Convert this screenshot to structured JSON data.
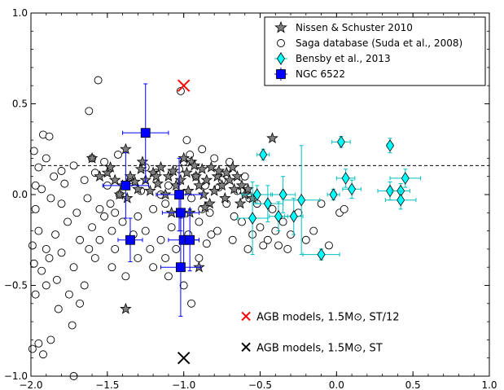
{
  "chart_data": {
    "type": "scatter",
    "title": "",
    "xlabel": "",
    "ylabel": "",
    "xlim": [
      -2.0,
      1.0
    ],
    "ylim": [
      -1.0,
      1.0
    ],
    "xticks": [
      -2.0,
      -1.5,
      -1.0,
      -0.5,
      0.0,
      0.5,
      1.0
    ],
    "yticks": [
      -1.0,
      -0.5,
      0.0,
      0.5,
      1.0
    ],
    "xtick_labels": [
      "−2.0",
      "−1.5",
      "−1.0",
      "−0.5",
      "0.0",
      "0.5",
      "1.0"
    ],
    "ytick_labels": [
      "−1.0",
      "−0.5",
      "0.0",
      "0.5",
      "1.0"
    ],
    "reference_line": {
      "y": 0.16,
      "style": "dashed",
      "color": "#000000"
    },
    "legend_position": "top-right",
    "legend": [
      {
        "label": "Nissen & Schuster 2010",
        "marker": "star"
      },
      {
        "label": "Saga database (Suda et al., 2008)",
        "marker": "open-circle"
      },
      {
        "label": "Bensby et al., 2013",
        "marker": "diamond"
      },
      {
        "label": "NGC 6522",
        "marker": "square"
      }
    ],
    "annotations": [
      {
        "x": -1.0,
        "y": 0.6,
        "marker": "x",
        "color": "#ff0000",
        "text": "AGB models, 1.5M⊙, ST/12",
        "text_x": -0.55,
        "text_y": -0.67
      },
      {
        "x": -1.0,
        "y": -0.9,
        "marker": "x",
        "color": "#000000",
        "text": "AGB models, 1.5M⊙, ST",
        "text_x": -0.55,
        "text_y": -0.84
      }
    ],
    "series": [
      {
        "name": "Saga database (Suda et al., 2008)",
        "marker": "open-circle",
        "color": "#000000",
        "points": [
          [
            -1.56,
            0.63
          ],
          [
            -1.62,
            0.46
          ],
          [
            -1.92,
            0.33
          ],
          [
            -1.88,
            0.32
          ],
          [
            -1.98,
            0.24
          ],
          [
            -1.9,
            0.2
          ],
          [
            -1.95,
            0.15
          ],
          [
            -1.8,
            0.13
          ],
          [
            -1.72,
            0.16
          ],
          [
            -1.85,
            0.1
          ],
          [
            -1.97,
            0.05
          ],
          [
            -1.93,
            0.03
          ],
          [
            -1.78,
            0.06
          ],
          [
            -1.65,
            0.08
          ],
          [
            -1.58,
            0.12
          ],
          [
            -1.87,
            -0.02
          ],
          [
            -1.97,
            -0.08
          ],
          [
            -1.8,
            -0.05
          ],
          [
            -1.7,
            -0.1
          ],
          [
            -1.63,
            -0.02
          ],
          [
            -1.55,
            -0.08
          ],
          [
            -1.95,
            -0.2
          ],
          [
            -1.9,
            -0.3
          ],
          [
            -1.99,
            -0.28
          ],
          [
            -1.84,
            -0.22
          ],
          [
            -1.76,
            -0.15
          ],
          [
            -1.68,
            -0.25
          ],
          [
            -1.6,
            -0.18
          ],
          [
            -1.52,
            -0.12
          ],
          [
            -1.98,
            -0.38
          ],
          [
            -1.93,
            -0.42
          ],
          [
            -1.88,
            -0.35
          ],
          [
            -1.8,
            -0.32
          ],
          [
            -1.72,
            -0.4
          ],
          [
            -1.62,
            -0.3
          ],
          [
            -1.55,
            -0.25
          ],
          [
            -1.47,
            -0.2
          ],
          [
            -1.9,
            -0.5
          ],
          [
            -1.83,
            -0.47
          ],
          [
            -1.97,
            -0.55
          ],
          [
            -1.75,
            -0.55
          ],
          [
            -1.68,
            -0.6
          ],
          [
            -1.82,
            -0.63
          ],
          [
            -1.73,
            -0.72
          ],
          [
            -1.99,
            -0.85
          ],
          [
            -1.95,
            -0.82
          ],
          [
            -1.87,
            -0.8
          ],
          [
            -1.92,
            -0.88
          ],
          [
            -1.72,
            -1.0
          ],
          [
            -1.5,
            0.05
          ],
          [
            -1.48,
            -0.05
          ],
          [
            -1.45,
            -0.1
          ],
          [
            -1.4,
            -0.15
          ],
          [
            -1.42,
            0.0
          ],
          [
            -1.35,
            0.08
          ],
          [
            -1.3,
            -0.12
          ],
          [
            -1.28,
            0.02
          ],
          [
            -1.25,
            -0.2
          ],
          [
            -1.2,
            -0.08
          ],
          [
            -1.18,
            0.12
          ],
          [
            -1.15,
            -0.25
          ],
          [
            -1.12,
            -0.05
          ],
          [
            -1.1,
            0.05
          ],
          [
            -1.08,
            -0.18
          ],
          [
            -1.05,
            -0.3
          ],
          [
            -1.03,
            0.14
          ],
          [
            -1.0,
            0.18
          ],
          [
            -0.98,
            0.3
          ],
          [
            -0.96,
            0.22
          ],
          [
            -0.95,
            -0.02
          ],
          [
            -0.92,
            0.1
          ],
          [
            -0.9,
            -0.15
          ],
          [
            -0.88,
            0.25
          ],
          [
            -0.86,
            0.05
          ],
          [
            -0.83,
            -0.1
          ],
          [
            -0.8,
            0.2
          ],
          [
            -0.78,
            -0.2
          ],
          [
            -0.75,
            0.08
          ],
          [
            -0.72,
            -0.05
          ],
          [
            -0.7,
            0.18
          ],
          [
            -0.68,
            -0.25
          ],
          [
            -0.65,
            0.02
          ],
          [
            -0.62,
            -0.15
          ],
          [
            -0.6,
            0.1
          ],
          [
            -0.58,
            -0.3
          ],
          [
            -0.55,
            -0.22
          ],
          [
            -0.52,
            -0.05
          ],
          [
            -0.5,
            -0.18
          ],
          [
            -0.48,
            -0.28
          ],
          [
            -0.45,
            -0.25
          ],
          [
            -0.42,
            -0.08
          ],
          [
            -0.4,
            -0.2
          ],
          [
            -0.38,
            -0.28
          ],
          [
            -0.35,
            -0.15
          ],
          [
            -0.32,
            -0.3
          ],
          [
            -0.3,
            -0.22
          ],
          [
            -0.25,
            -0.1
          ],
          [
            -0.2,
            -0.25
          ],
          [
            -0.15,
            -0.2
          ],
          [
            -0.1,
            -0.05
          ],
          [
            -0.05,
            -0.28
          ],
          [
            0.02,
            -0.1
          ],
          [
            0.05,
            -0.08
          ],
          [
            -1.02,
            0.57
          ],
          [
            -1.3,
            -0.35
          ],
          [
            -1.2,
            -0.4
          ],
          [
            -1.1,
            -0.45
          ],
          [
            -0.95,
            -0.6
          ],
          [
            -1.0,
            -0.5
          ],
          [
            -0.9,
            -0.35
          ],
          [
            -1.38,
            -0.45
          ],
          [
            -1.45,
            -0.3
          ],
          [
            -1.25,
            0.15
          ],
          [
            -1.33,
            -0.22
          ],
          [
            -1.15,
            0.0
          ],
          [
            -0.85,
            -0.27
          ],
          [
            -0.67,
            -0.12
          ],
          [
            -0.77,
            0.04
          ],
          [
            -0.57,
            -0.02
          ],
          [
            -1.6,
            0.2
          ],
          [
            -1.52,
            0.18
          ],
          [
            -1.43,
            0.22
          ],
          [
            -1.22,
            -0.3
          ],
          [
            -1.12,
            -0.35
          ],
          [
            -0.97,
            -0.22
          ],
          [
            -0.88,
            -0.08
          ],
          [
            -0.82,
            -0.22
          ],
          [
            -1.47,
            -0.4
          ],
          [
            -1.58,
            -0.35
          ],
          [
            -1.65,
            -0.5
          ]
        ]
      },
      {
        "name": "Nissen & Schuster 2010",
        "marker": "star",
        "color": "#808080",
        "points": [
          [
            -1.6,
            0.2
          ],
          [
            -1.38,
            0.25
          ],
          [
            -1.27,
            0.18
          ],
          [
            -1.5,
            0.12
          ],
          [
            -1.45,
            0.08
          ],
          [
            -1.4,
            0.05
          ],
          [
            -1.35,
            0.1
          ],
          [
            -1.3,
            0.03
          ],
          [
            -1.25,
            0.08
          ],
          [
            -1.2,
            0.12
          ],
          [
            -1.15,
            0.15
          ],
          [
            -1.1,
            0.1
          ],
          [
            -1.05,
            0.05
          ],
          [
            -1.0,
            0.2
          ],
          [
            -0.98,
            0.12
          ],
          [
            -0.95,
            0.18
          ],
          [
            -0.92,
            0.1
          ],
          [
            -0.9,
            0.05
          ],
          [
            -0.88,
            0.14
          ],
          [
            -0.85,
            0.08
          ],
          [
            -0.82,
            0.15
          ],
          [
            -0.8,
            0.02
          ],
          [
            -0.78,
            0.1
          ],
          [
            -0.75,
            0.05
          ],
          [
            -0.72,
            0.12
          ],
          [
            -0.7,
            0.08
          ],
          [
            -0.68,
            0.15
          ],
          [
            -0.65,
            0.1
          ],
          [
            -0.62,
            0.05
          ],
          [
            -0.6,
            0.0
          ],
          [
            -0.58,
            0.03
          ],
          [
            -0.55,
            -0.02
          ],
          [
            -0.42,
            0.31
          ],
          [
            -1.42,
            0.0
          ],
          [
            -1.37,
            -0.02
          ],
          [
            -1.32,
            0.07
          ],
          [
            -1.22,
            0.02
          ],
          [
            -1.17,
            0.06
          ],
          [
            -1.12,
            0.0
          ],
          [
            -1.07,
            0.13
          ],
          [
            -1.02,
            0.08
          ],
          [
            -0.97,
            0.02
          ],
          [
            -0.93,
            0.16
          ],
          [
            -0.87,
            0.0
          ],
          [
            -0.83,
            -0.05
          ],
          [
            -0.77,
            0.13
          ],
          [
            -0.73,
            -0.02
          ],
          [
            -0.67,
            0.03
          ],
          [
            -0.63,
            -0.05
          ],
          [
            -1.55,
            0.1
          ],
          [
            -1.48,
            0.15
          ],
          [
            -1.28,
            0.14
          ],
          [
            -1.18,
            0.1
          ],
          [
            -1.08,
            -0.1
          ],
          [
            -0.9,
            -0.4
          ],
          [
            -1.38,
            -0.63
          ],
          [
            -0.96,
            -0.1
          ],
          [
            -0.86,
            -0.07
          ]
        ]
      },
      {
        "name": "Bensby et al., 2013",
        "marker": "diamond",
        "color": "#00ffff",
        "points": [
          {
            "x": -0.48,
            "y": 0.22,
            "xerr": 0.04,
            "yerr": 0.03
          },
          {
            "x": -0.52,
            "y": 0.0,
            "xerr": 0.1,
            "yerr": 0.05
          },
          {
            "x": -0.45,
            "y": -0.05,
            "xerr": 0.1,
            "yerr": 0.1
          },
          {
            "x": -0.38,
            "y": -0.12,
            "xerr": 0.06,
            "yerr": 0.08
          },
          {
            "x": -0.35,
            "y": 0.0,
            "xerr": 0.08,
            "yerr": 0.1
          },
          {
            "x": -0.55,
            "y": -0.13,
            "xerr": 0.1,
            "yerr": 0.2
          },
          {
            "x": -0.28,
            "y": -0.12,
            "xerr": 0.06,
            "yerr": 0.1
          },
          {
            "x": -0.23,
            "y": -0.03,
            "xerr": 0.12,
            "yerr": 0.3
          },
          {
            "x": -0.1,
            "y": -0.33,
            "xerr": 0.12,
            "yerr": 0.03
          },
          {
            "x": -0.02,
            "y": 0.0,
            "xerr": 0.04,
            "yerr": 0.03
          },
          {
            "x": 0.03,
            "y": 0.29,
            "xerr": 0.06,
            "yerr": 0.03
          },
          {
            "x": 0.06,
            "y": 0.09,
            "xerr": 0.06,
            "yerr": 0.05
          },
          {
            "x": 0.1,
            "y": 0.03,
            "xerr": 0.06,
            "yerr": 0.05
          },
          {
            "x": 0.35,
            "y": 0.27,
            "xerr": 0.02,
            "yerr": 0.04
          },
          {
            "x": 0.35,
            "y": 0.02,
            "xerr": 0.08,
            "yerr": 0.05
          },
          {
            "x": 0.42,
            "y": 0.02,
            "xerr": 0.06,
            "yerr": 0.04
          },
          {
            "x": 0.45,
            "y": 0.09,
            "xerr": 0.1,
            "yerr": 0.05
          },
          {
            "x": 0.42,
            "y": -0.03,
            "xerr": 0.1,
            "yerr": 0.05
          }
        ]
      },
      {
        "name": "NGC 6522",
        "marker": "square",
        "color": "#0000ff",
        "points": [
          {
            "x": -1.25,
            "y": 0.34,
            "xerr": 0.15,
            "yerr": 0.27
          },
          {
            "x": -1.38,
            "y": 0.05,
            "xerr": 0.15,
            "yerr": 0.18
          },
          {
            "x": -1.35,
            "y": -0.25,
            "xerr": 0.08,
            "yerr": 0.12
          },
          {
            "x": -1.03,
            "y": 0.0,
            "xerr": 0.15,
            "yerr": 0.2
          },
          {
            "x": -1.02,
            "y": -0.1,
            "xerr": 0.12,
            "yerr": 0.1
          },
          {
            "x": -1.0,
            "y": -0.25,
            "xerr": 0.1,
            "yerr": 0.17
          },
          {
            "x": -0.96,
            "y": -0.25,
            "xerr": 0.06,
            "yerr": 0.17
          },
          {
            "x": -1.02,
            "y": -0.4,
            "xerr": 0.13,
            "yerr": 0.27
          }
        ]
      }
    ]
  }
}
